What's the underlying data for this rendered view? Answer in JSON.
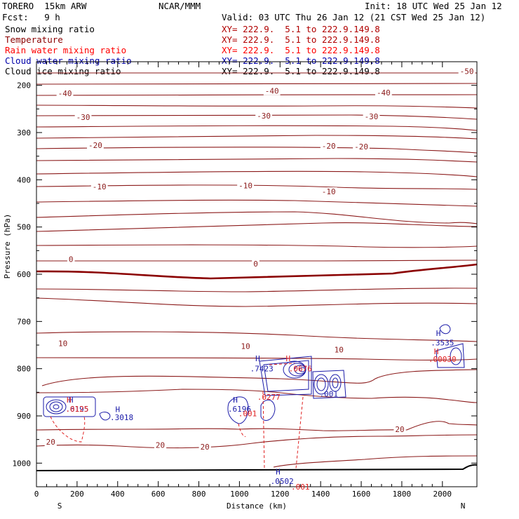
{
  "header": {
    "model": "TORERO  15km ARW",
    "center": "NCAR/MMM",
    "init": "Init: 18 UTC Wed 25 Jan 12",
    "fcst": "Fcst:   9 h",
    "valid": "Valid: 03 UTC Thu 26 Jan 12 (21 CST Wed 25 Jan 12)"
  },
  "legend": [
    {
      "label": "Snow mixing ratio",
      "xy": "XY= 222.9.  5.1 to 222.9.149.8",
      "label_color": "#000000",
      "xy_color": "#b00000"
    },
    {
      "label": "Temperature",
      "xy": "XY= 222.9.  5.1 to 222.9.149.8",
      "label_color": "#8b0000",
      "xy_color": "#b00000"
    },
    {
      "label": "Rain water mixing ratio",
      "xy": "XY= 222.9.  5.1 to 222.9.149.8",
      "label_color": "#ff0000",
      "xy_color": "#ff0000"
    },
    {
      "label": "Cloud water mixing ratio",
      "xy": "XY= 222.9.  5.1 to 222.9.149.8",
      "label_color": "#0000aa",
      "xy_color": "#0000aa"
    },
    {
      "label": "Cloud ice mixing ratio",
      "xy": "XY= 222.9.  5.1 to 222.9.149.8",
      "label_color": "#000000",
      "xy_color": "#000000"
    }
  ],
  "colors": {
    "temperature": "#8b1a1a",
    "freezing": "#8b0000",
    "cloud_water": "#1a1aa8",
    "rain": "#e02020",
    "terrain": "#000000"
  },
  "chart_data": {
    "type": "contour-cross-section",
    "xlabel": "Distance (km)",
    "ylabel": "Pressure (hPa)",
    "xlim": [
      0,
      2170
    ],
    "ylim": [
      1050,
      150
    ],
    "x_ticks": [
      "0",
      "200",
      "400",
      "600",
      "800",
      "1000",
      "1200",
      "1400",
      "1600",
      "1800",
      "2000"
    ],
    "y_ticks": [
      "200",
      "300",
      "400",
      "500",
      "600",
      "700",
      "800",
      "900",
      "1000"
    ],
    "left_end": "S",
    "right_end": "N",
    "temperature_labels": [
      {
        "t": "-50",
        "x": 2120,
        "p": 170
      },
      {
        "t": "-40",
        "x": 140,
        "p": 217
      },
      {
        "t": "-40",
        "x": 1160,
        "p": 212
      },
      {
        "t": "-40",
        "x": 1710,
        "p": 215
      },
      {
        "t": "-30",
        "x": 230,
        "p": 267
      },
      {
        "t": "-30",
        "x": 1120,
        "p": 264
      },
      {
        "t": "-30",
        "x": 1650,
        "p": 266
      },
      {
        "t": "-20",
        "x": 290,
        "p": 327
      },
      {
        "t": "-20",
        "x": 1440,
        "p": 328
      },
      {
        "t": "-20",
        "x": 1600,
        "p": 330
      },
      {
        "t": "-10",
        "x": 310,
        "p": 414
      },
      {
        "t": "-10",
        "x": 1030,
        "p": 412
      },
      {
        "t": "-10",
        "x": 1440,
        "p": 425
      },
      {
        "t": "0",
        "x": 170,
        "p": 568
      },
      {
        "t": "0",
        "x": 1080,
        "p": 578
      },
      {
        "t": "10",
        "x": 130,
        "p": 746
      },
      {
        "t": "10",
        "x": 1030,
        "p": 752
      },
      {
        "t": "10",
        "x": 1490,
        "p": 760
      },
      {
        "t": "20",
        "x": 70,
        "p": 955
      },
      {
        "t": "20",
        "x": 610,
        "p": 962
      },
      {
        "t": "20",
        "x": 830,
        "p": 965
      },
      {
        "t": "20",
        "x": 1790,
        "p": 928
      }
    ],
    "cloud_labels": [
      {
        "t": "H",
        "x": 170,
        "p": 866,
        "c": "cloud_water"
      },
      {
        "t": ".6195",
        "x": 200,
        "p": 885,
        "c": "cloud_water"
      },
      {
        "t": "H",
        "x": 400,
        "p": 886,
        "c": "cloud_water"
      },
      {
        "t": ".3018",
        "x": 420,
        "p": 903,
        "c": "cloud_water"
      },
      {
        "t": "H",
        "x": 1090,
        "p": 778,
        "c": "cloud_water"
      },
      {
        "t": ".7423",
        "x": 1110,
        "p": 800,
        "c": "cloud_water"
      },
      {
        "t": "H",
        "x": 980,
        "p": 866,
        "c": "cloud_water"
      },
      {
        "t": ".6196",
        "x": 1000,
        "p": 885,
        "c": "cloud_water"
      },
      {
        "t": "H",
        "x": 1190,
        "p": 1018,
        "c": "cloud_water"
      },
      {
        "t": ".0502",
        "x": 1210,
        "p": 1038,
        "c": "cloud_water"
      },
      {
        "t": ".001",
        "x": 1440,
        "p": 853,
        "c": "cloud_water"
      },
      {
        "t": "H",
        "x": 1980,
        "p": 725,
        "c": "cloud_water"
      },
      {
        "t": ".3535",
        "x": 2000,
        "p": 745,
        "c": "cloud_water"
      }
    ],
    "rain_labels": [
      {
        "t": "H",
        "x": 1240,
        "p": 778,
        "c": "rain"
      },
      {
        "t": ".0676",
        "x": 1300,
        "p": 800,
        "c": "rain"
      },
      {
        "t": ".0277",
        "x": 1145,
        "p": 860,
        "c": "rain"
      },
      {
        "t": ".001",
        "x": 1040,
        "p": 895,
        "c": "rain"
      },
      {
        "t": ".001",
        "x": 1300,
        "p": 1050,
        "c": "rain"
      },
      {
        "t": "H",
        "x": 1970,
        "p": 763,
        "c": "rain"
      },
      {
        "t": ".00030",
        "x": 2000,
        "p": 780,
        "c": "rain"
      },
      {
        "t": ".0125",
        "x": 200,
        "p": 885,
        "c": "rain"
      },
      {
        "t": "H",
        "x": 160,
        "p": 866,
        "c": "rain"
      }
    ]
  }
}
